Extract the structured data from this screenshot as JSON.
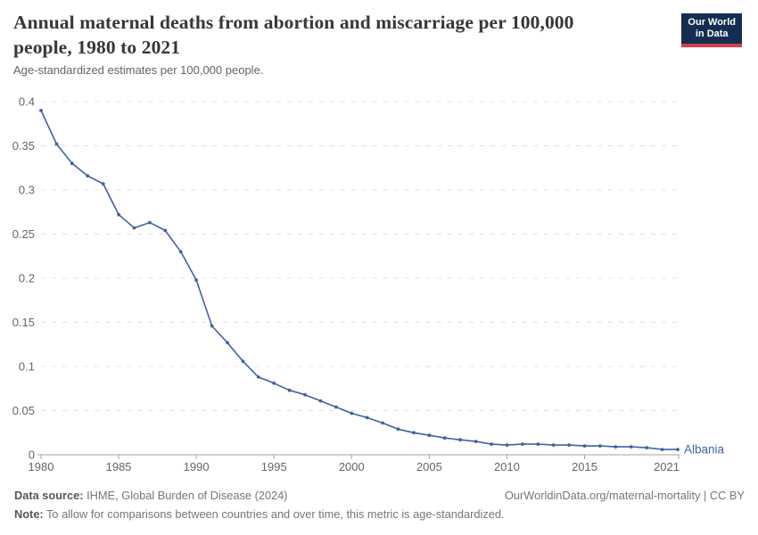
{
  "header": {
    "title_lines": [
      "Annual maternal deaths from abortion and miscarriage per 100,000",
      "people, 1980 to 2021"
    ],
    "subtitle": "Age-standardized estimates per 100,000 people.",
    "logo": {
      "line1": "Our World",
      "line2": "in Data"
    }
  },
  "chart_data": {
    "type": "line",
    "title": "Annual maternal deaths from abortion and miscarriage per 100,000 people, 1980 to 2021",
    "subtitle": "Age-standardized estimates per 100,000 people.",
    "xlabel": "",
    "ylabel": "",
    "xlim": [
      1980,
      2021
    ],
    "ylim": [
      0,
      0.4
    ],
    "grid": "horizontal-dashed",
    "legend_position": "line-end-label",
    "x": [
      1980,
      1981,
      1982,
      1983,
      1984,
      1985,
      1986,
      1987,
      1988,
      1989,
      1990,
      1991,
      1992,
      1993,
      1994,
      1995,
      1996,
      1997,
      1998,
      1999,
      2000,
      2001,
      2002,
      2003,
      2004,
      2005,
      2006,
      2007,
      2008,
      2009,
      2010,
      2011,
      2012,
      2013,
      2014,
      2015,
      2016,
      2017,
      2018,
      2019,
      2020,
      2021
    ],
    "series": [
      {
        "name": "Albania",
        "color": "#3e63a2",
        "values": [
          0.39,
          0.352,
          0.33,
          0.316,
          0.307,
          0.272,
          0.257,
          0.263,
          0.254,
          0.23,
          0.198,
          0.146,
          0.127,
          0.106,
          0.088,
          0.081,
          0.073,
          0.068,
          0.061,
          0.054,
          0.047,
          0.042,
          0.036,
          0.029,
          0.025,
          0.022,
          0.019,
          0.017,
          0.015,
          0.012,
          0.011,
          0.012,
          0.012,
          0.011,
          0.011,
          0.01,
          0.01,
          0.009,
          0.009,
          0.008,
          0.006,
          0.006
        ]
      }
    ],
    "yticks": [
      {
        "v": 0,
        "label": "0"
      },
      {
        "v": 0.05,
        "label": "0.05"
      },
      {
        "v": 0.1,
        "label": "0.1"
      },
      {
        "v": 0.15,
        "label": "0.15"
      },
      {
        "v": 0.2,
        "label": "0.2"
      },
      {
        "v": 0.25,
        "label": "0.25"
      },
      {
        "v": 0.3,
        "label": "0.3"
      },
      {
        "v": 0.35,
        "label": "0.35"
      },
      {
        "v": 0.4,
        "label": "0.4"
      }
    ],
    "xticks": [
      {
        "v": 1980,
        "label": "1980"
      },
      {
        "v": 1985,
        "label": "1985"
      },
      {
        "v": 1990,
        "label": "1990"
      },
      {
        "v": 1995,
        "label": "1995"
      },
      {
        "v": 2000,
        "label": "2000"
      },
      {
        "v": 2005,
        "label": "2005"
      },
      {
        "v": 2010,
        "label": "2010"
      },
      {
        "v": 2015,
        "label": "2015"
      },
      {
        "v": 2021,
        "label": "2021"
      }
    ]
  },
  "footer": {
    "datasource_label": "Data source:",
    "datasource_value": "IHME, Global Burden of Disease (2024)",
    "note_label": "Note:",
    "note_value": "To allow for comparisons between countries and over time, this metric is age-standardized.",
    "attribution": "OurWorldinData.org/maternal-mortality | CC BY"
  },
  "colors": {
    "accent_line": "#3e63a2",
    "logo_bg": "#142e52",
    "logo_stripe": "#dc3c4c",
    "grid": "#e0e0e0",
    "axis": "#a3a3a3",
    "tick_text": "#666666",
    "title_text": "#383636",
    "subtitle_text": "#636363",
    "footer_text": "#767676",
    "footer_bold": "#575757"
  }
}
